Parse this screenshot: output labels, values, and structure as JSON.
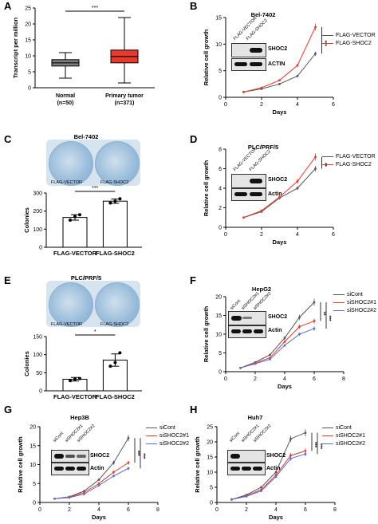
{
  "panels": {
    "A": {
      "label": "A",
      "ylabel": "Transcript per million",
      "sig": "***",
      "ticks": [
        "0",
        "5",
        "10",
        "15",
        "20",
        "25"
      ],
      "groups": [
        {
          "name": "Normal",
          "n": "(n=50)",
          "color": "#7f7f7f"
        },
        {
          "name": "Primary tumor",
          "n": "(n=371)",
          "color": "#e63a2a"
        }
      ]
    },
    "B": {
      "label": "B",
      "title": "Bel-7402",
      "ylabel": "Relative cell growth",
      "xlabel": "Days",
      "sig": "***",
      "legend": [
        "FLAG-VECTOR",
        "FLAG-SHOC2"
      ],
      "lanes": [
        "FLAG-VECTOR",
        "FLAG-SHOC2"
      ],
      "rows": [
        "SHOC2",
        "ACTIN"
      ]
    },
    "C": {
      "label": "C",
      "title": "Bel-7402",
      "dish_labels": [
        "FLAG-VECTOR",
        "FLAG-SHOC2"
      ],
      "ylabel": "Colonies",
      "sig": "***",
      "ticks": [
        "0",
        "100",
        "200",
        "300"
      ],
      "cats": [
        "FLAG-VECTOR",
        "FLAG-SHOC2"
      ]
    },
    "D": {
      "label": "D",
      "title": "PLC/PRF/5",
      "ylabel": "Relative cell growth",
      "xlabel": "Days",
      "sig": "**",
      "legend": [
        "FLAG-VECTOR",
        "FLAG-SHOC2"
      ],
      "lanes": [
        "FLAG-VECTOR",
        "FLAG-SHOC2"
      ],
      "rows": [
        "SHOC2",
        "Actin"
      ]
    },
    "E": {
      "label": "E",
      "title": "PLC/PRF/5",
      "dish_labels": [
        "FLAG-VECTOR",
        "FLAG-SHOC2"
      ],
      "ylabel": "Colonies",
      "sig": "*",
      "ticks": [
        "0",
        "50",
        "100",
        "150"
      ],
      "cats": [
        "FLAG-VECTOR",
        "FLAG-SHOC2"
      ]
    },
    "F": {
      "label": "F",
      "title": "HepG2",
      "ylabel": "Relative cell growth",
      "xlabel": "Days",
      "sig": [
        "**",
        "***"
      ],
      "legend": [
        "siCont",
        "siSHOC2#1",
        "siSHOC2#2"
      ],
      "lanes": [
        "siCont",
        "siSHOC2#1",
        "siSHOC2#2"
      ],
      "rows": [
        "SHOC2",
        "Actin"
      ]
    },
    "G": {
      "label": "G",
      "title": "Hep3B",
      "ylabel": "Relative cell growth",
      "xlabel": "Days",
      "sig": [
        "***",
        "***"
      ],
      "legend": [
        "siCont",
        "siSHOC2#1",
        "siSHOC2#2"
      ],
      "lanes": [
        "siCont",
        "siSHOC2#1",
        "siSHOC2#2"
      ],
      "rows": [
        "SHOC2",
        "Actin"
      ]
    },
    "H": {
      "label": "H",
      "title": "Huh7",
      "ylabel": "Relative cell growth",
      "xlabel": "Days",
      "sig": [
        "***",
        "***"
      ],
      "legend": [
        "siCont",
        "siSHOC2#1",
        "siSHOC2#2"
      ],
      "lanes": [
        "siCont",
        "siSHOC2#1",
        "siSHOC2#2"
      ],
      "rows": [
        "SHOC2",
        "Actin"
      ]
    }
  },
  "colors": {
    "vector": "#555555",
    "shoc2": "#e63a2a",
    "sicont": "#555555",
    "si1": "#e63a2a",
    "si2": "#5b6fd6"
  },
  "chart_data": [
    {
      "id": "A",
      "type": "box",
      "categories": [
        "Normal",
        "Primary tumor"
      ],
      "ylim": [
        0,
        25
      ],
      "boxes": [
        {
          "min": 3,
          "q1": 6.8,
          "median": 7.8,
          "q3": 8.8,
          "max": 11
        },
        {
          "min": 1.5,
          "q1": 7.8,
          "median": 9.8,
          "q3": 11.8,
          "max": 22
        }
      ]
    },
    {
      "id": "B",
      "type": "line",
      "x": [
        1,
        2,
        3,
        4,
        5
      ],
      "xlim": [
        0,
        6
      ],
      "ylim": [
        0,
        15
      ],
      "xticks": [
        "0",
        "2",
        "4",
        "6"
      ],
      "yticks": [
        "0",
        "5",
        "10",
        "15"
      ],
      "series": [
        {
          "name": "FLAG-VECTOR",
          "values": [
            1,
            1.6,
            2.5,
            4,
            8.2
          ]
        },
        {
          "name": "FLAG-SHOC2",
          "values": [
            1,
            1.8,
            3.2,
            6,
            13.2
          ]
        }
      ]
    },
    {
      "id": "C",
      "type": "bar",
      "categories": [
        "FLAG-VECTOR",
        "FLAG-SHOC2"
      ],
      "values": [
        165,
        255
      ],
      "errors": [
        15,
        12
      ],
      "ylim": [
        0,
        300
      ],
      "points": [
        [
          150,
          170,
          180
        ],
        [
          245,
          255,
          268
        ]
      ]
    },
    {
      "id": "D",
      "type": "line",
      "x": [
        1,
        2,
        3,
        4,
        5
      ],
      "xlim": [
        0,
        6
      ],
      "ylim": [
        0,
        8
      ],
      "xticks": [
        "0",
        "2",
        "4",
        "6"
      ],
      "yticks": [
        "0",
        "2",
        "4",
        "6",
        "8"
      ],
      "series": [
        {
          "name": "FLAG-VECTOR",
          "values": [
            1,
            1.6,
            3,
            4,
            6
          ]
        },
        {
          "name": "FLAG-SHOC2",
          "values": [
            1,
            1.7,
            3.1,
            4.7,
            7.2
          ]
        }
      ]
    },
    {
      "id": "E",
      "type": "bar",
      "categories": [
        "FLAG-VECTOR",
        "FLAG-SHOC2"
      ],
      "values": [
        32,
        85
      ],
      "errors": [
        5,
        17
      ],
      "ylim": [
        0,
        150
      ],
      "points": [
        [
          28,
          32,
          34
        ],
        [
          68,
          78,
          105
        ]
      ]
    },
    {
      "id": "F",
      "type": "line",
      "x": [
        1,
        2,
        3,
        4,
        5,
        6
      ],
      "xlim": [
        0,
        8
      ],
      "ylim": [
        0,
        20
      ],
      "xticks": [
        "0",
        "2",
        "4",
        "6",
        "8"
      ],
      "yticks": [
        "0",
        "5",
        "10",
        "15",
        "20"
      ],
      "series": [
        {
          "name": "siCont",
          "values": [
            1,
            2.5,
            4.5,
            9,
            14.5,
            18.5
          ]
        },
        {
          "name": "siSHOC2#1",
          "values": [
            1,
            2.3,
            3.7,
            8,
            12,
            13.5
          ]
        },
        {
          "name": "siSHOC2#2",
          "values": [
            1,
            2.1,
            3.3,
            7,
            10,
            11.5
          ]
        }
      ]
    },
    {
      "id": "G",
      "type": "line",
      "x": [
        1,
        2,
        3,
        4,
        5,
        6
      ],
      "xlim": [
        0,
        8
      ],
      "ylim": [
        0,
        20
      ],
      "xticks": [
        "0",
        "2",
        "4",
        "6",
        "8"
      ],
      "yticks": [
        "0",
        "5",
        "10",
        "15",
        "20"
      ],
      "series": [
        {
          "name": "siCont",
          "values": [
            1,
            1.5,
            3,
            6,
            10.5,
            17
          ]
        },
        {
          "name": "siSHOC2#1",
          "values": [
            1,
            1.4,
            2.6,
            5,
            8,
            10.5
          ]
        },
        {
          "name": "siSHOC2#2",
          "values": [
            1,
            1.3,
            2.2,
            4.5,
            7,
            9
          ]
        }
      ]
    },
    {
      "id": "H",
      "type": "line",
      "x": [
        1,
        2,
        3,
        4,
        5,
        6
      ],
      "xlim": [
        0,
        8
      ],
      "ylim": [
        0,
        25
      ],
      "xticks": [
        "0",
        "2",
        "4",
        "6",
        "8"
      ],
      "yticks": [
        "0",
        "5",
        "10",
        "15",
        "20",
        "25"
      ],
      "series": [
        {
          "name": "siCont",
          "values": [
            1,
            2.5,
            5,
            10,
            21,
            23
          ]
        },
        {
          "name": "siSHOC2#1",
          "values": [
            1,
            2.2,
            4.2,
            9,
            15.5,
            17
          ]
        },
        {
          "name": "siSHOC2#2",
          "values": [
            1,
            2,
            3.8,
            8.5,
            14.5,
            16
          ]
        }
      ]
    }
  ]
}
